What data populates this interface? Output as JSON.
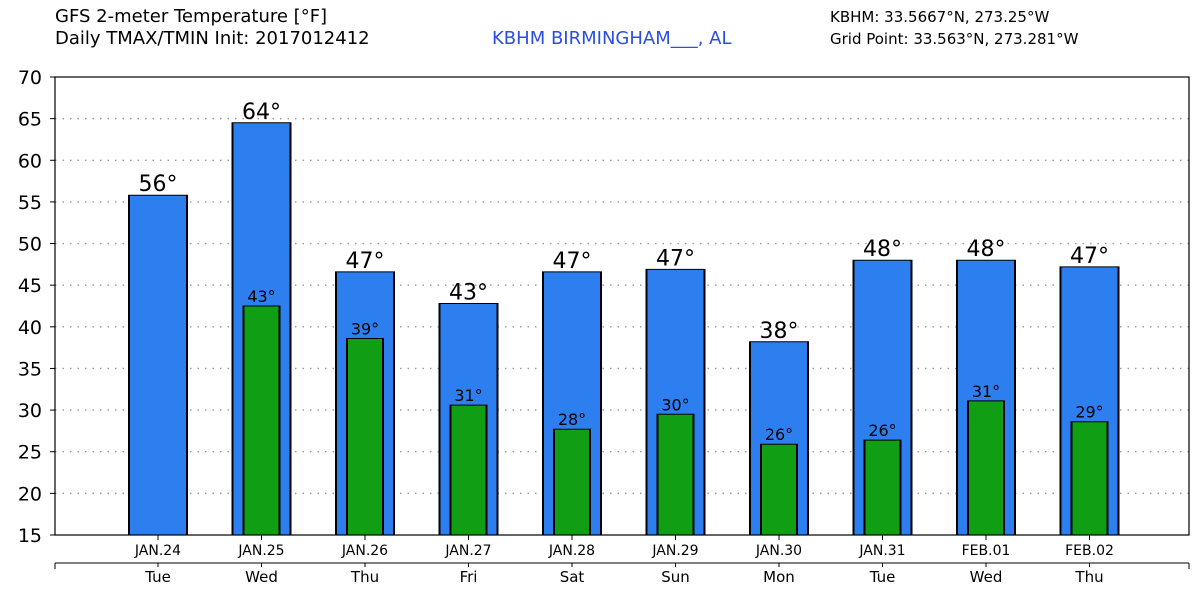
{
  "header": {
    "title_line1": "GFS 2-meter Temperature [°F]",
    "title_line2": "Daily TMAX/TMIN Init: 2017012412",
    "station": "KBHM BIRMINGHAM___, AL",
    "coord_line1": "KBHM: 33.5667°N, 273.25°W",
    "coord_line2": "Grid Point: 33.563°N, 273.281°W"
  },
  "colors": {
    "tmax": "#2d7ff0",
    "tmin": "#0f9e14",
    "station_text": "#2b4de6"
  },
  "chart_data": {
    "type": "bar",
    "categories": [
      "JAN.24",
      "JAN.25",
      "JAN.26",
      "JAN.27",
      "JAN.28",
      "JAN.29",
      "JAN.30",
      "JAN.31",
      "FEB.01",
      "FEB.02"
    ],
    "days": [
      "Tue",
      "Wed",
      "Thu",
      "Fri",
      "Sat",
      "Sun",
      "Mon",
      "Tue",
      "Wed",
      "Thu"
    ],
    "ylim": [
      15,
      70
    ],
    "yticks": [
      15,
      20,
      25,
      30,
      35,
      40,
      45,
      50,
      55,
      60,
      65,
      70
    ],
    "grid": true,
    "series": [
      {
        "key": "tmax",
        "values": [
          55.8,
          64.5,
          46.6,
          42.8,
          46.6,
          46.9,
          38.2,
          48.0,
          48.0,
          47.2
        ],
        "labels": [
          "56°",
          "64°",
          "47°",
          "43°",
          "47°",
          "47°",
          "38°",
          "48°",
          "48°",
          "47°"
        ]
      },
      {
        "key": "tmin",
        "values": [
          null,
          42.5,
          38.6,
          30.6,
          27.7,
          29.5,
          25.9,
          26.4,
          31.1,
          28.6
        ],
        "labels": [
          "",
          "43°",
          "39°",
          "31°",
          "28°",
          "30°",
          "26°",
          "26°",
          "31°",
          "29°"
        ]
      }
    ]
  }
}
